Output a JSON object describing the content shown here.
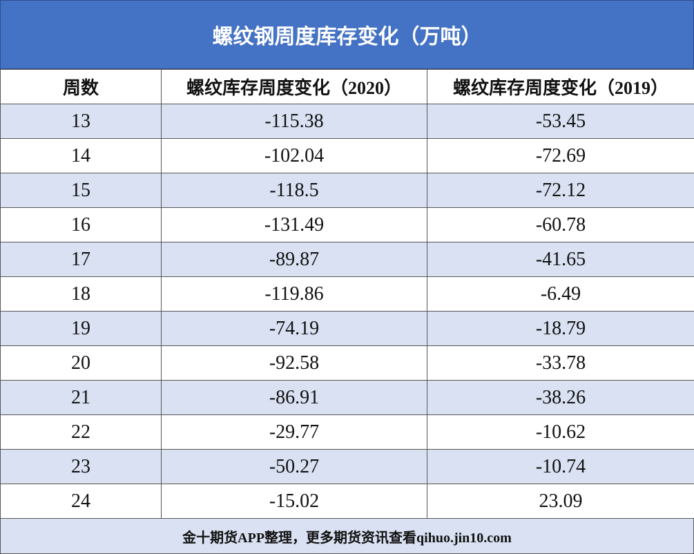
{
  "title": "螺纹钢周度库存变化（万吨）",
  "table": {
    "header": [
      "周数",
      "螺纹库存周度变化（2020）",
      "螺纹库存周度变化（2019）"
    ],
    "rows": [
      [
        "13",
        "-115.38",
        "-53.45"
      ],
      [
        "14",
        "-102.04",
        "-72.69"
      ],
      [
        "15",
        "-118.5",
        "-72.12"
      ],
      [
        "16",
        "-131.49",
        "-60.78"
      ],
      [
        "17",
        "-89.87",
        "-41.65"
      ],
      [
        "18",
        "-119.86",
        "-6.49"
      ],
      [
        "19",
        "-74.19",
        "-18.79"
      ],
      [
        "20",
        "-92.58",
        "-33.78"
      ],
      [
        "21",
        "-86.91",
        "-38.26"
      ],
      [
        "22",
        "-29.77",
        "-10.62"
      ],
      [
        "23",
        "-50.27",
        "-10.74"
      ],
      [
        "24",
        "-15.02",
        "23.09"
      ]
    ]
  },
  "footer": "金十期货APP整理，更多期货资讯查看qihuo.jin10.com"
}
